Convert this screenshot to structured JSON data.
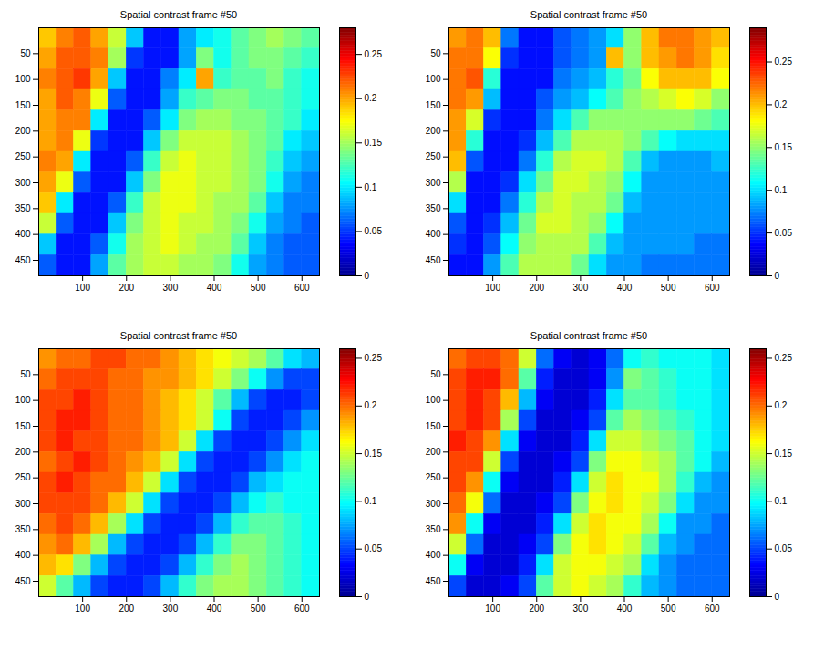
{
  "chart_data": [
    {
      "type": "heatmap",
      "title": "Spatial contrast frame #50",
      "x_edges": [
        0,
        40,
        80,
        120,
        160,
        200,
        240,
        280,
        320,
        360,
        400,
        440,
        480,
        520,
        560,
        600,
        640
      ],
      "y_edges": [
        0,
        40,
        80,
        120,
        160,
        200,
        240,
        280,
        320,
        360,
        400,
        440,
        480
      ],
      "xlim": [
        0,
        640
      ],
      "ylim": [
        480,
        0
      ],
      "xticks": [
        100,
        200,
        300,
        400,
        500,
        600
      ],
      "yticks": [
        50,
        100,
        150,
        200,
        250,
        300,
        350,
        400,
        450
      ],
      "colorbar": {
        "range": [
          0,
          0.28
        ],
        "ticks": [
          0,
          0.05,
          0.1,
          0.15,
          0.2,
          0.25
        ]
      },
      "cells": [
        [
          0.19,
          0.21,
          0.22,
          0.2,
          0.16,
          0.09,
          0.04,
          0.04,
          0.08,
          0.1,
          0.11,
          0.13,
          0.14,
          0.15,
          0.14,
          0.13
        ],
        [
          0.2,
          0.22,
          0.22,
          0.21,
          0.15,
          0.05,
          0.04,
          0.04,
          0.08,
          0.14,
          0.11,
          0.13,
          0.14,
          0.14,
          0.13,
          0.12
        ],
        [
          0.21,
          0.22,
          0.23,
          0.2,
          0.09,
          0.04,
          0.04,
          0.07,
          0.1,
          0.2,
          0.12,
          0.13,
          0.13,
          0.14,
          0.12,
          0.11
        ],
        [
          0.2,
          0.22,
          0.21,
          0.17,
          0.06,
          0.04,
          0.04,
          0.08,
          0.12,
          0.13,
          0.14,
          0.14,
          0.13,
          0.13,
          0.12,
          0.11
        ],
        [
          0.2,
          0.21,
          0.21,
          0.1,
          0.04,
          0.04,
          0.06,
          0.1,
          0.14,
          0.15,
          0.15,
          0.14,
          0.14,
          0.13,
          0.12,
          0.1
        ],
        [
          0.2,
          0.21,
          0.17,
          0.05,
          0.04,
          0.04,
          0.09,
          0.14,
          0.16,
          0.16,
          0.16,
          0.15,
          0.14,
          0.13,
          0.1,
          0.09
        ],
        [
          0.21,
          0.2,
          0.1,
          0.04,
          0.04,
          0.06,
          0.12,
          0.16,
          0.17,
          0.16,
          0.16,
          0.15,
          0.14,
          0.12,
          0.09,
          0.08
        ],
        [
          0.2,
          0.17,
          0.06,
          0.04,
          0.04,
          0.09,
          0.14,
          0.17,
          0.17,
          0.16,
          0.16,
          0.15,
          0.14,
          0.11,
          0.08,
          0.07
        ],
        [
          0.19,
          0.1,
          0.04,
          0.04,
          0.06,
          0.12,
          0.16,
          0.17,
          0.17,
          0.16,
          0.15,
          0.15,
          0.13,
          0.09,
          0.07,
          0.07
        ],
        [
          0.16,
          0.06,
          0.04,
          0.04,
          0.09,
          0.14,
          0.16,
          0.17,
          0.16,
          0.16,
          0.15,
          0.14,
          0.11,
          0.08,
          0.07,
          0.06
        ],
        [
          0.09,
          0.04,
          0.04,
          0.06,
          0.11,
          0.15,
          0.16,
          0.17,
          0.16,
          0.15,
          0.15,
          0.13,
          0.09,
          0.07,
          0.06,
          0.06
        ],
        [
          0.06,
          0.04,
          0.04,
          0.08,
          0.13,
          0.15,
          0.16,
          0.16,
          0.15,
          0.15,
          0.14,
          0.11,
          0.08,
          0.07,
          0.06,
          0.06
        ]
      ]
    },
    {
      "type": "heatmap",
      "title": "Spatial contrast frame #50",
      "x_edges": [
        0,
        40,
        80,
        120,
        160,
        200,
        240,
        280,
        320,
        360,
        400,
        440,
        480,
        520,
        560,
        600,
        640
      ],
      "y_edges": [
        0,
        40,
        80,
        120,
        160,
        200,
        240,
        280,
        320,
        360,
        400,
        440,
        480
      ],
      "xlim": [
        0,
        640
      ],
      "ylim": [
        480,
        0
      ],
      "xticks": [
        100,
        200,
        300,
        400,
        500,
        600
      ],
      "yticks": [
        50,
        100,
        150,
        200,
        250,
        300,
        350,
        400,
        450
      ],
      "colorbar": {
        "range": [
          0,
          0.29
        ],
        "ticks": [
          0,
          0.05,
          0.1,
          0.15,
          0.2,
          0.25
        ]
      },
      "cells": [
        [
          0.21,
          0.22,
          0.2,
          0.07,
          0.04,
          0.04,
          0.06,
          0.07,
          0.08,
          0.1,
          0.15,
          0.2,
          0.22,
          0.22,
          0.21,
          0.2
        ],
        [
          0.22,
          0.22,
          0.18,
          0.05,
          0.04,
          0.04,
          0.06,
          0.07,
          0.08,
          0.2,
          0.15,
          0.2,
          0.21,
          0.22,
          0.21,
          0.19
        ],
        [
          0.22,
          0.23,
          0.12,
          0.04,
          0.04,
          0.04,
          0.07,
          0.08,
          0.09,
          0.12,
          0.14,
          0.18,
          0.2,
          0.2,
          0.2,
          0.18
        ],
        [
          0.22,
          0.21,
          0.09,
          0.04,
          0.04,
          0.06,
          0.08,
          0.09,
          0.11,
          0.13,
          0.15,
          0.16,
          0.17,
          0.18,
          0.17,
          0.15
        ],
        [
          0.21,
          0.17,
          0.05,
          0.04,
          0.04,
          0.07,
          0.1,
          0.13,
          0.15,
          0.15,
          0.15,
          0.15,
          0.15,
          0.15,
          0.14,
          0.13
        ],
        [
          0.21,
          0.12,
          0.04,
          0.04,
          0.05,
          0.09,
          0.13,
          0.16,
          0.16,
          0.16,
          0.15,
          0.13,
          0.11,
          0.1,
          0.1,
          0.1
        ],
        [
          0.2,
          0.06,
          0.04,
          0.04,
          0.07,
          0.12,
          0.16,
          0.17,
          0.17,
          0.16,
          0.13,
          0.09,
          0.08,
          0.08,
          0.08,
          0.09
        ],
        [
          0.16,
          0.04,
          0.04,
          0.05,
          0.1,
          0.14,
          0.17,
          0.17,
          0.16,
          0.15,
          0.11,
          0.08,
          0.08,
          0.08,
          0.08,
          0.08
        ],
        [
          0.1,
          0.04,
          0.04,
          0.07,
          0.12,
          0.16,
          0.17,
          0.16,
          0.16,
          0.14,
          0.09,
          0.08,
          0.08,
          0.08,
          0.08,
          0.08
        ],
        [
          0.06,
          0.04,
          0.05,
          0.09,
          0.14,
          0.17,
          0.17,
          0.16,
          0.15,
          0.11,
          0.08,
          0.08,
          0.08,
          0.08,
          0.08,
          0.08
        ],
        [
          0.05,
          0.04,
          0.06,
          0.11,
          0.15,
          0.16,
          0.16,
          0.16,
          0.13,
          0.09,
          0.08,
          0.08,
          0.08,
          0.08,
          0.07,
          0.07
        ],
        [
          0.04,
          0.04,
          0.08,
          0.13,
          0.16,
          0.16,
          0.16,
          0.14,
          0.1,
          0.08,
          0.08,
          0.07,
          0.07,
          0.07,
          0.07,
          0.07
        ]
      ]
    },
    {
      "type": "heatmap",
      "title": "Spatial contrast frame #50",
      "x_edges": [
        0,
        40,
        80,
        120,
        160,
        200,
        240,
        280,
        320,
        360,
        400,
        440,
        480,
        520,
        560,
        600,
        640
      ],
      "y_edges": [
        0,
        40,
        80,
        120,
        160,
        200,
        240,
        280,
        320,
        360,
        400,
        440,
        480
      ],
      "xlim": [
        0,
        640
      ],
      "ylim": [
        480,
        0
      ],
      "xticks": [
        100,
        200,
        300,
        400,
        500,
        600
      ],
      "yticks": [
        50,
        100,
        150,
        200,
        250,
        300,
        350,
        400,
        450
      ],
      "colorbar": {
        "range": [
          0,
          0.26
        ],
        "ticks": [
          0,
          0.05,
          0.1,
          0.15,
          0.2,
          0.25
        ]
      },
      "cells": [
        [
          0.19,
          0.2,
          0.2,
          0.21,
          0.21,
          0.2,
          0.2,
          0.19,
          0.18,
          0.17,
          0.16,
          0.15,
          0.14,
          0.12,
          0.09,
          0.08
        ],
        [
          0.2,
          0.21,
          0.21,
          0.21,
          0.2,
          0.2,
          0.19,
          0.19,
          0.18,
          0.17,
          0.15,
          0.13,
          0.1,
          0.07,
          0.05,
          0.05
        ],
        [
          0.21,
          0.21,
          0.22,
          0.21,
          0.2,
          0.2,
          0.19,
          0.18,
          0.17,
          0.15,
          0.12,
          0.08,
          0.05,
          0.04,
          0.04,
          0.05
        ],
        [
          0.21,
          0.22,
          0.22,
          0.21,
          0.2,
          0.2,
          0.19,
          0.18,
          0.17,
          0.15,
          0.1,
          0.05,
          0.04,
          0.04,
          0.05,
          0.07
        ],
        [
          0.21,
          0.22,
          0.21,
          0.21,
          0.2,
          0.2,
          0.19,
          0.18,
          0.15,
          0.09,
          0.05,
          0.04,
          0.04,
          0.05,
          0.07,
          0.09
        ],
        [
          0.2,
          0.21,
          0.22,
          0.21,
          0.2,
          0.19,
          0.18,
          0.15,
          0.09,
          0.05,
          0.04,
          0.04,
          0.05,
          0.07,
          0.09,
          0.1
        ],
        [
          0.21,
          0.22,
          0.21,
          0.2,
          0.2,
          0.18,
          0.15,
          0.09,
          0.05,
          0.04,
          0.04,
          0.05,
          0.08,
          0.09,
          0.1,
          0.1
        ],
        [
          0.21,
          0.21,
          0.21,
          0.2,
          0.18,
          0.15,
          0.09,
          0.05,
          0.04,
          0.04,
          0.05,
          0.08,
          0.1,
          0.11,
          0.1,
          0.1
        ],
        [
          0.2,
          0.21,
          0.2,
          0.18,
          0.14,
          0.09,
          0.05,
          0.04,
          0.04,
          0.05,
          0.08,
          0.11,
          0.12,
          0.12,
          0.11,
          0.1
        ],
        [
          0.19,
          0.2,
          0.18,
          0.14,
          0.08,
          0.05,
          0.04,
          0.04,
          0.05,
          0.08,
          0.11,
          0.13,
          0.13,
          0.12,
          0.11,
          0.1
        ],
        [
          0.18,
          0.17,
          0.13,
          0.08,
          0.05,
          0.04,
          0.04,
          0.05,
          0.08,
          0.11,
          0.13,
          0.14,
          0.13,
          0.12,
          0.11,
          0.1
        ],
        [
          0.15,
          0.12,
          0.08,
          0.05,
          0.04,
          0.04,
          0.05,
          0.08,
          0.11,
          0.13,
          0.14,
          0.14,
          0.13,
          0.12,
          0.11,
          0.1
        ]
      ]
    },
    {
      "type": "heatmap",
      "title": "Spatial contrast frame #50",
      "x_edges": [
        0,
        40,
        80,
        120,
        160,
        200,
        240,
        280,
        320,
        360,
        400,
        440,
        480,
        520,
        560,
        600,
        640
      ],
      "y_edges": [
        0,
        40,
        80,
        120,
        160,
        200,
        240,
        280,
        320,
        360,
        400,
        440,
        480
      ],
      "xlim": [
        0,
        640
      ],
      "ylim": [
        480,
        0
      ],
      "xticks": [
        100,
        200,
        300,
        400,
        500,
        600
      ],
      "yticks": [
        50,
        100,
        150,
        200,
        250,
        300,
        350,
        400,
        450
      ],
      "colorbar": {
        "range": [
          0,
          0.26
        ],
        "ticks": [
          0,
          0.05,
          0.1,
          0.15,
          0.2,
          0.25
        ]
      },
      "cells": [
        [
          0.2,
          0.21,
          0.21,
          0.2,
          0.15,
          0.06,
          0.03,
          0.02,
          0.03,
          0.06,
          0.1,
          0.11,
          0.1,
          0.1,
          0.1,
          0.09
        ],
        [
          0.21,
          0.22,
          0.22,
          0.2,
          0.12,
          0.04,
          0.02,
          0.02,
          0.03,
          0.07,
          0.13,
          0.12,
          0.11,
          0.1,
          0.1,
          0.09
        ],
        [
          0.21,
          0.22,
          0.21,
          0.18,
          0.08,
          0.03,
          0.02,
          0.02,
          0.04,
          0.09,
          0.12,
          0.12,
          0.11,
          0.1,
          0.1,
          0.09
        ],
        [
          0.21,
          0.22,
          0.21,
          0.14,
          0.05,
          0.02,
          0.02,
          0.03,
          0.05,
          0.12,
          0.14,
          0.13,
          0.12,
          0.11,
          0.1,
          0.09
        ],
        [
          0.22,
          0.21,
          0.19,
          0.09,
          0.03,
          0.02,
          0.02,
          0.04,
          0.09,
          0.15,
          0.15,
          0.14,
          0.13,
          0.12,
          0.1,
          0.09
        ],
        [
          0.21,
          0.21,
          0.15,
          0.05,
          0.02,
          0.02,
          0.03,
          0.05,
          0.13,
          0.16,
          0.16,
          0.15,
          0.14,
          0.12,
          0.1,
          0.08
        ],
        [
          0.21,
          0.19,
          0.1,
          0.03,
          0.02,
          0.02,
          0.04,
          0.09,
          0.15,
          0.17,
          0.16,
          0.16,
          0.14,
          0.11,
          0.08,
          0.07
        ],
        [
          0.2,
          0.16,
          0.06,
          0.02,
          0.02,
          0.03,
          0.05,
          0.13,
          0.16,
          0.17,
          0.16,
          0.15,
          0.13,
          0.09,
          0.07,
          0.07
        ],
        [
          0.19,
          0.1,
          0.03,
          0.02,
          0.02,
          0.04,
          0.09,
          0.15,
          0.17,
          0.16,
          0.16,
          0.14,
          0.1,
          0.07,
          0.07,
          0.06
        ],
        [
          0.15,
          0.06,
          0.02,
          0.02,
          0.03,
          0.05,
          0.13,
          0.16,
          0.17,
          0.16,
          0.15,
          0.12,
          0.08,
          0.07,
          0.06,
          0.06
        ],
        [
          0.1,
          0.03,
          0.02,
          0.02,
          0.04,
          0.09,
          0.15,
          0.16,
          0.16,
          0.15,
          0.14,
          0.09,
          0.07,
          0.06,
          0.06,
          0.06
        ],
        [
          0.05,
          0.02,
          0.02,
          0.03,
          0.05,
          0.12,
          0.15,
          0.16,
          0.15,
          0.14,
          0.11,
          0.08,
          0.07,
          0.06,
          0.06,
          0.06
        ]
      ]
    }
  ]
}
